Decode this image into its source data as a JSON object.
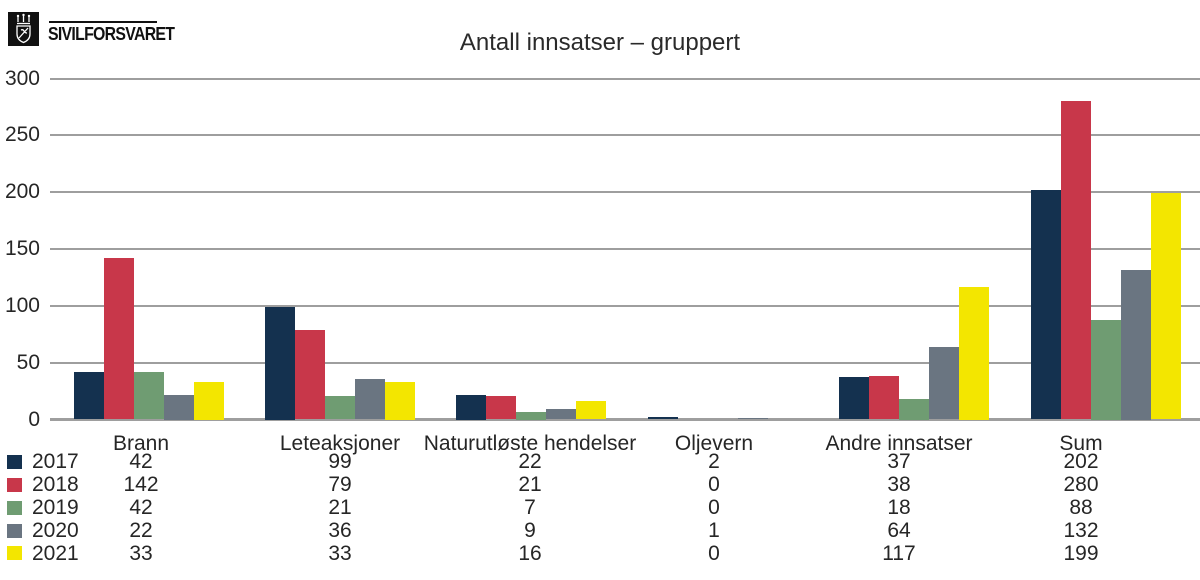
{
  "logo": {
    "brand": "SIVILFORSVARET",
    "emblem_icon": "coat-of-arms-icon"
  },
  "colors": {
    "grid": "#9e9e9e",
    "text": "#262626",
    "logo_black": "#111111"
  },
  "chart_data": {
    "type": "bar",
    "title": "Antall innsatser – gruppert",
    "categories": [
      "Brann",
      "Leteaksjoner",
      "Naturutløste hendelser",
      "Oljevern",
      "Andre innsatser",
      "Sum"
    ],
    "series": [
      {
        "name": "2017",
        "color": "#14314f",
        "values": [
          42,
          99,
          22,
          2,
          37,
          202
        ]
      },
      {
        "name": "2018",
        "color": "#c8374a",
        "values": [
          142,
          79,
          21,
          0,
          38,
          280
        ]
      },
      {
        "name": "2019",
        "color": "#6f9c72",
        "values": [
          42,
          21,
          7,
          0,
          18,
          88
        ]
      },
      {
        "name": "2020",
        "color": "#6a7581",
        "values": [
          22,
          36,
          9,
          1,
          64,
          132
        ]
      },
      {
        "name": "2021",
        "color": "#f3e600",
        "values": [
          33,
          33,
          16,
          0,
          117,
          199
        ]
      }
    ],
    "xlabel": "",
    "ylabel": "",
    "ylim": [
      0,
      300
    ],
    "yticks": [
      0,
      50,
      100,
      150,
      200,
      250,
      300
    ],
    "grid": true,
    "legend_position": "bottom-left-table"
  }
}
